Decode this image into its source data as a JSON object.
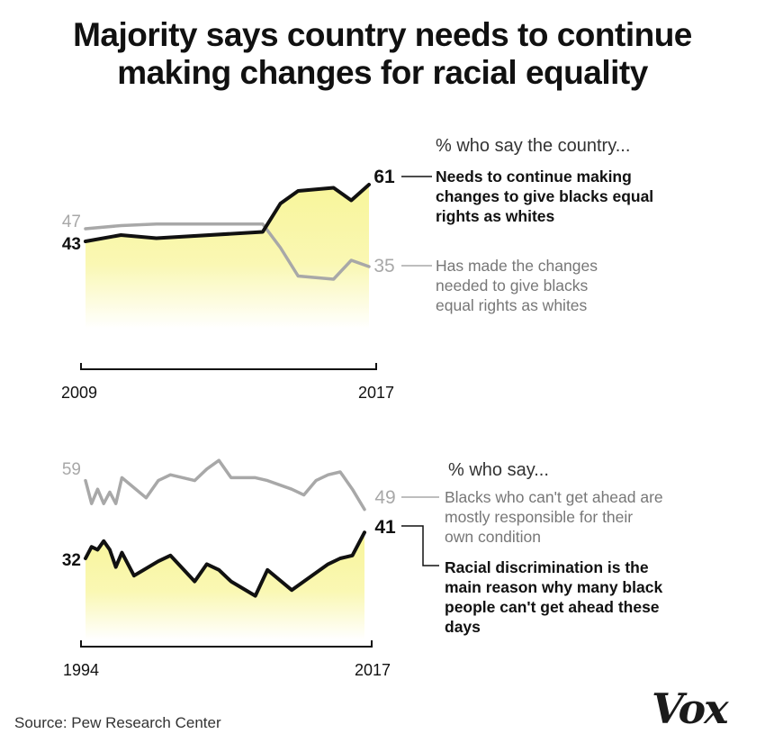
{
  "title": {
    "line1": "Majority says country needs to continue",
    "line2": "making changes for racial equality"
  },
  "source": "Source: Pew Research Center",
  "logo": "Vox",
  "colors": {
    "dark": "#111111",
    "light": "#a8a8a8",
    "fill": "#f8f59a"
  },
  "chart_data": [
    {
      "type": "line",
      "heading": "% who say the country...",
      "x_tick_labels": [
        "2009",
        "2017"
      ],
      "series": [
        {
          "label": "Needs to continue making changes to give blacks equal rights as whites",
          "color": "dark",
          "filled": true,
          "x": [
            2009,
            2010,
            2011,
            2014,
            2014.5,
            2015,
            2016,
            2016.5,
            2017
          ],
          "y": [
            43,
            45,
            44,
            46,
            55,
            59,
            60,
            56,
            61
          ],
          "start_label": "43",
          "end_label": "61"
        },
        {
          "label": "Has made the changes needed to give blacks equal rights as whites",
          "color": "light",
          "filled": false,
          "x": [
            2009,
            2010,
            2011,
            2014,
            2014.5,
            2015,
            2016,
            2016.5,
            2017
          ],
          "y": [
            47,
            48,
            48.5,
            48.5,
            41,
            32,
            31,
            37,
            35
          ],
          "start_label": "47",
          "end_label": "35"
        }
      ]
    },
    {
      "type": "line",
      "heading": "% who say...",
      "x_tick_labels": [
        "1994",
        "2017"
      ],
      "series": [
        {
          "label": "Blacks who can't get ahead are mostly responsible for their own condition",
          "color": "light",
          "filled": false,
          "x": [
            1994,
            1994.5,
            1995,
            1995.5,
            1996,
            1996.5,
            1997,
            1999,
            2000,
            2001,
            2003,
            2004,
            2005,
            2006,
            2008,
            2009,
            2011,
            2012,
            2013,
            2014,
            2015,
            2016,
            2017
          ],
          "y": [
            59,
            51,
            56,
            51,
            55,
            51,
            60,
            53,
            59,
            61,
            59,
            63,
            66,
            60,
            60,
            59,
            56,
            54,
            59,
            61,
            62,
            56,
            49
          ],
          "start_label": "59",
          "end_label": "49"
        },
        {
          "label": "Racial discrimination is the main reason why many black people can't get ahead these days",
          "color": "dark",
          "filled": true,
          "x": [
            1994,
            1994.5,
            1995,
            1995.5,
            1996,
            1996.5,
            1997,
            1998,
            2000,
            2001,
            2003,
            2004,
            2005,
            2006,
            2008,
            2009,
            2011,
            2012,
            2013,
            2014,
            2015,
            2016,
            2017
          ],
          "y": [
            32,
            36,
            35,
            38,
            35,
            29,
            34,
            26,
            31,
            33,
            24,
            30,
            28,
            24,
            19,
            28,
            21,
            24,
            27,
            30,
            32,
            33,
            41
          ],
          "start_label": "32",
          "end_label": "41"
        }
      ]
    }
  ]
}
